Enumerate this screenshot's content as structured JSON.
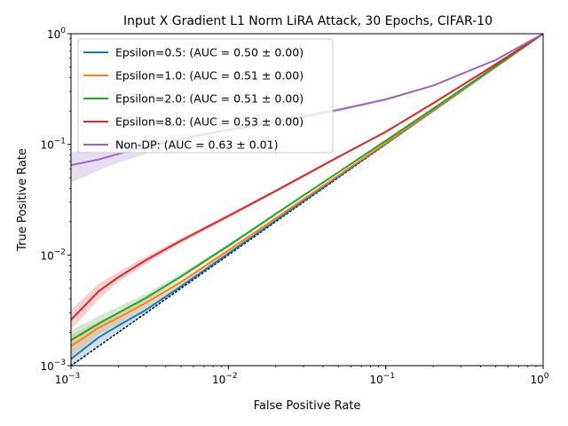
{
  "chart_data": {
    "type": "line",
    "title": "Input X Gradient L1 Norm LiRA Attack, 30 Epochs, CIFAR-10",
    "xlabel": "False Positive Rate",
    "ylabel": "True Positive Rate",
    "xscale": "log",
    "yscale": "log",
    "xlim": [
      0.001,
      1
    ],
    "ylim": [
      0.001,
      1
    ],
    "grid": false,
    "legend_position": "upper left",
    "x_ticks": [
      {
        "value": 0.001,
        "label": "10",
        "exp": "−3"
      },
      {
        "value": 0.01,
        "label": "10",
        "exp": "−2"
      },
      {
        "value": 0.1,
        "label": "10",
        "exp": "−1"
      },
      {
        "value": 1,
        "label": "10",
        "exp": "0"
      }
    ],
    "y_ticks": [
      {
        "value": 0.001,
        "label": "10",
        "exp": "−3"
      },
      {
        "value": 0.01,
        "label": "10",
        "exp": "−2"
      },
      {
        "value": 0.1,
        "label": "10",
        "exp": "−1"
      },
      {
        "value": 1,
        "label": "10",
        "exp": "0"
      }
    ],
    "reference_line": {
      "style": "dotted",
      "color": "#000000",
      "x": [
        0.001,
        1
      ],
      "y": [
        0.001,
        1
      ]
    },
    "x": [
      0.001,
      0.0015,
      0.002,
      0.003,
      0.005,
      0.01,
      0.02,
      0.05,
      0.1,
      0.2,
      0.5,
      1.0
    ],
    "series": [
      {
        "name": "Epsilon=0.5: (AUC = 0.50 ± 0.00)",
        "color": "#1f77b4",
        "y": [
          0.00115,
          0.0018,
          0.0023,
          0.0032,
          0.0052,
          0.0103,
          0.0205,
          0.051,
          0.101,
          0.201,
          0.501,
          1.0
        ],
        "band_low": [
          0.00095,
          0.0015,
          0.002,
          0.0029,
          0.0049,
          0.0099,
          0.02,
          0.05,
          0.1,
          0.2,
          0.5,
          1.0
        ],
        "band_high": [
          0.0014,
          0.0021,
          0.0026,
          0.0035,
          0.0055,
          0.0107,
          0.021,
          0.052,
          0.102,
          0.202,
          0.502,
          1.0
        ]
      },
      {
        "name": "Epsilon=1.0: (AUC = 0.51 ± 0.00)",
        "color": "#ff7f0e",
        "y": [
          0.0015,
          0.0022,
          0.0027,
          0.0037,
          0.0057,
          0.011,
          0.0215,
          0.0525,
          0.103,
          0.204,
          0.505,
          1.0
        ],
        "band_low": [
          0.0012,
          0.0019,
          0.0024,
          0.0034,
          0.0054,
          0.0106,
          0.021,
          0.0515,
          0.102,
          0.203,
          0.504,
          1.0
        ],
        "band_high": [
          0.0019,
          0.0025,
          0.003,
          0.004,
          0.006,
          0.0114,
          0.022,
          0.0535,
          0.104,
          0.205,
          0.506,
          1.0
        ]
      },
      {
        "name": "Epsilon=2.0: (AUC = 0.51 ± 0.00)",
        "color": "#2ca02c",
        "y": [
          0.0017,
          0.0024,
          0.003,
          0.0041,
          0.0064,
          0.0121,
          0.0235,
          0.056,
          0.108,
          0.21,
          0.51,
          1.0
        ],
        "band_low": [
          0.0014,
          0.0021,
          0.0027,
          0.0038,
          0.0061,
          0.0116,
          0.0228,
          0.055,
          0.107,
          0.209,
          0.509,
          1.0
        ],
        "band_high": [
          0.0021,
          0.0028,
          0.0034,
          0.0045,
          0.0068,
          0.0126,
          0.0242,
          0.057,
          0.109,
          0.211,
          0.511,
          1.0
        ]
      },
      {
        "name": "Epsilon=8.0: (AUC = 0.53 ± 0.00)",
        "color": "#d62728",
        "y": [
          0.0026,
          0.0047,
          0.0063,
          0.009,
          0.0135,
          0.0225,
          0.038,
          0.077,
          0.13,
          0.235,
          0.53,
          1.0
        ],
        "band_low": [
          0.0021,
          0.004,
          0.0057,
          0.0083,
          0.0128,
          0.0216,
          0.0368,
          0.075,
          0.128,
          0.233,
          0.528,
          1.0
        ],
        "band_high": [
          0.0032,
          0.0055,
          0.007,
          0.0097,
          0.0142,
          0.0234,
          0.0392,
          0.079,
          0.132,
          0.237,
          0.532,
          1.0
        ]
      },
      {
        "name": "Non-DP: (AUC = 0.63 ± 0.01)",
        "color": "#9467bd",
        "y": [
          0.065,
          0.073,
          0.082,
          0.095,
          0.112,
          0.135,
          0.16,
          0.205,
          0.255,
          0.34,
          0.58,
          1.0
        ],
        "band_low": [
          0.045,
          0.058,
          0.068,
          0.082,
          0.1,
          0.125,
          0.152,
          0.198,
          0.25,
          0.335,
          0.577,
          1.0
        ],
        "band_high": [
          0.085,
          0.09,
          0.096,
          0.107,
          0.123,
          0.145,
          0.168,
          0.212,
          0.26,
          0.345,
          0.583,
          1.0
        ]
      }
    ]
  }
}
